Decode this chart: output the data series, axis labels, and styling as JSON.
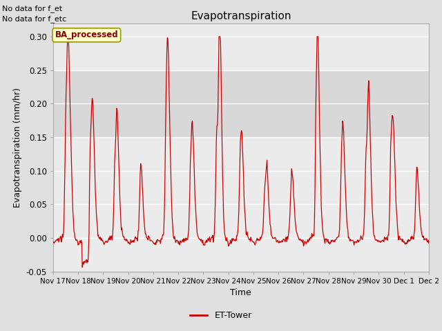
{
  "title": "Evapotranspiration",
  "ylabel": "Evapotranspiration (mm/hr)",
  "xlabel": "Time",
  "top_left_text_line1": "No data for f_et",
  "top_left_text_line2": "No data for f_etc",
  "ba_label": "BA_processed",
  "legend_label": "ET-Tower",
  "ylim": [
    -0.05,
    0.32
  ],
  "yticks": [
    -0.05,
    0.0,
    0.05,
    0.1,
    0.15,
    0.2,
    0.25,
    0.3
  ],
  "bg_color": "#e0e0e0",
  "plot_bg_color": "#ebebeb",
  "line_color": "#cc0000",
  "grid_color": "#ffffff",
  "shaded_region": [
    0.15,
    0.25
  ],
  "x_tick_labels": [
    "Nov 17",
    "Nov 18",
    "Nov 19",
    "Nov 20",
    "Nov 21",
    "Nov 22",
    "Nov 23",
    "Nov 24",
    "Nov 25",
    "Nov 26",
    "Nov 27",
    "Nov 28",
    "Nov 29",
    "Nov 30",
    "Dec 1",
    "Dec 2"
  ],
  "x_tick_positions": [
    0,
    48,
    96,
    144,
    192,
    240,
    288,
    336,
    384,
    432,
    480,
    528,
    576,
    624,
    672,
    720
  ]
}
